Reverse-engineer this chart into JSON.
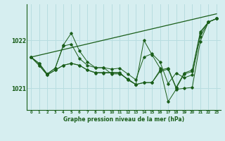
{
  "background_color": "#d6eef0",
  "grid_color": "#b8dde0",
  "line_color": "#1a5e1a",
  "xlabel": "Graphe pression niveau de la mer (hPa)",
  "xlabel_fontsize": 5.5,
  "ylabel_ticks": [
    1021,
    1022
  ],
  "xlim": [
    -0.5,
    23.5
  ],
  "ylim": [
    1020.55,
    1022.75
  ],
  "xticks": [
    0,
    1,
    2,
    3,
    4,
    5,
    6,
    7,
    8,
    9,
    10,
    11,
    12,
    13,
    14,
    15,
    16,
    17,
    18,
    19,
    20,
    21,
    22,
    23
  ],
  "series": [
    [
      1021.65,
      1021.52,
      1021.3,
      1021.42,
      1021.9,
      1022.15,
      1021.78,
      1021.55,
      1021.43,
      1021.43,
      1021.4,
      1021.42,
      1021.3,
      1021.18,
      1021.65,
      1021.72,
      1021.55,
      1021.1,
      1021.32,
      1021.22,
      1021.28,
      1022.08,
      1022.38,
      1022.45
    ],
    [
      1021.65,
      1021.52,
      1021.3,
      1021.42,
      1021.88,
      1021.92,
      1021.62,
      1021.48,
      1021.43,
      1021.43,
      1021.3,
      1021.3,
      1021.2,
      1021.08,
      1022.0,
      1021.7,
      1021.42,
      1020.72,
      1020.98,
      1021.0,
      1021.02,
      1021.98,
      1022.38,
      1022.45
    ],
    [
      1021.65,
      1021.48,
      1021.28,
      1021.38,
      1021.48,
      1021.52,
      1021.48,
      1021.38,
      1021.33,
      1021.33,
      1021.33,
      1021.33,
      1021.18,
      1021.08,
      1021.12,
      1021.12,
      1021.38,
      1021.42,
      1021.02,
      1021.32,
      1021.38,
      1022.18,
      1022.38,
      1022.45
    ],
    [
      1021.65,
      1021.48,
      1021.28,
      1021.38,
      1021.48,
      1021.52,
      1021.48,
      1021.38,
      1021.32,
      1021.32,
      1021.32,
      1021.32,
      1021.18,
      1021.08,
      1021.12,
      1021.12,
      1021.35,
      1021.4,
      1021.0,
      1021.3,
      1021.35,
      1022.15,
      1022.38,
      1022.45
    ]
  ]
}
